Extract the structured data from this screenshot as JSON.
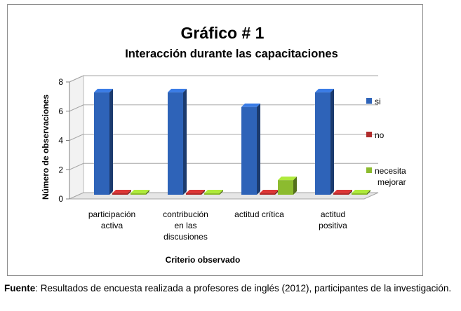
{
  "chart_data": {
    "type": "bar",
    "title": "Gráfico # 1",
    "subtitle": "Interacción durante las capacitaciones",
    "xlabel": "Criterio observado",
    "ylabel": "Número de observaciones",
    "categories": [
      [
        "participación",
        "activa"
      ],
      [
        "contribución",
        "en las",
        "discusiones"
      ],
      [
        "actitud crítica"
      ],
      [
        "actitud",
        "positiva"
      ]
    ],
    "series": [
      {
        "name": "si",
        "values": [
          7,
          7,
          6,
          7
        ],
        "color": "#2e63b8"
      },
      {
        "name": "no",
        "values": [
          0,
          0,
          0,
          0
        ],
        "color": "#b02c2c"
      },
      {
        "name": "necesita mejorar",
        "values": [
          0,
          0,
          1,
          0
        ],
        "color": "#8cbb2f"
      }
    ],
    "legend_labels": [
      [
        "si"
      ],
      [
        "no"
      ],
      [
        "necesita",
        "mejorar"
      ]
    ],
    "yticks": [
      "0",
      "2",
      "4",
      "6",
      "8"
    ],
    "ylim": [
      0,
      8
    ],
    "grid": true,
    "legend_position": "right"
  },
  "caption": {
    "source_label": "Fuente",
    "text": ": Resultados de encuesta realizada a profesores de inglés (2012), participantes de la investigación."
  }
}
